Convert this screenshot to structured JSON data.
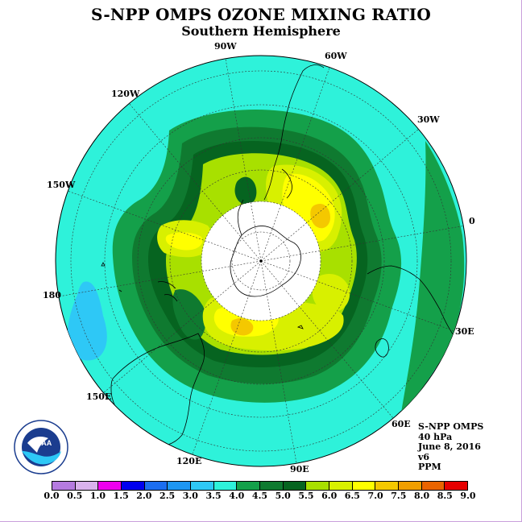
{
  "title": "S-NPP OMPS OZONE MIXING RATIO",
  "subtitle": "Southern Hemisphere",
  "longitude_labels": [
    "90W",
    "60W",
    "30W",
    "0",
    "30E",
    "60E",
    "90E",
    "120E",
    "150E",
    "180",
    "150W",
    "120W"
  ],
  "info": {
    "instrument": "S-NPP OMPS",
    "level": "40 hPa",
    "date": "June 8, 2016",
    "version": "v6",
    "units": "PPM"
  },
  "logo": {
    "text": "NOAA",
    "ring_text": "NATIONAL OCEANIC AND ATMOSPHERIC ADMINISTRATION · U.S. DEPARTMENT OF COMMERCE"
  },
  "colorbar": {
    "ticks": [
      "0.0",
      "0.5",
      "1.0",
      "1.5",
      "2.0",
      "2.5",
      "3.0",
      "3.5",
      "4.0",
      "4.5",
      "5.0",
      "5.5",
      "6.0",
      "6.5",
      "7.0",
      "7.5",
      "8.0",
      "8.5",
      "9.0"
    ],
    "colors": [
      "#b57be0",
      "#d9b2ec",
      "#ee00ee",
      "#0000ee",
      "#1c6ef0",
      "#1e96f2",
      "#2ec8f6",
      "#2ef2da",
      "#14a04a",
      "#0f7a30",
      "#066420",
      "#a8e000",
      "#d8f000",
      "#ffff00",
      "#f4c800",
      "#f09e00",
      "#ea6400",
      "#e60000",
      "#8c5a46"
    ]
  },
  "legend_palette": {
    "background_field": "#2ef2da",
    "lowest_field": "#2ec8f6",
    "ring_4_0": "#14a04a",
    "ring_4_5": "#0f7a30",
    "ring_5_0": "#066420",
    "inner_5_5": "#a8e000",
    "inner_6_0": "#d8f000",
    "inner_6_5": "#ffff00",
    "peak_7_0": "#f4c800",
    "polar_cap_missing": "#ffffff"
  }
}
